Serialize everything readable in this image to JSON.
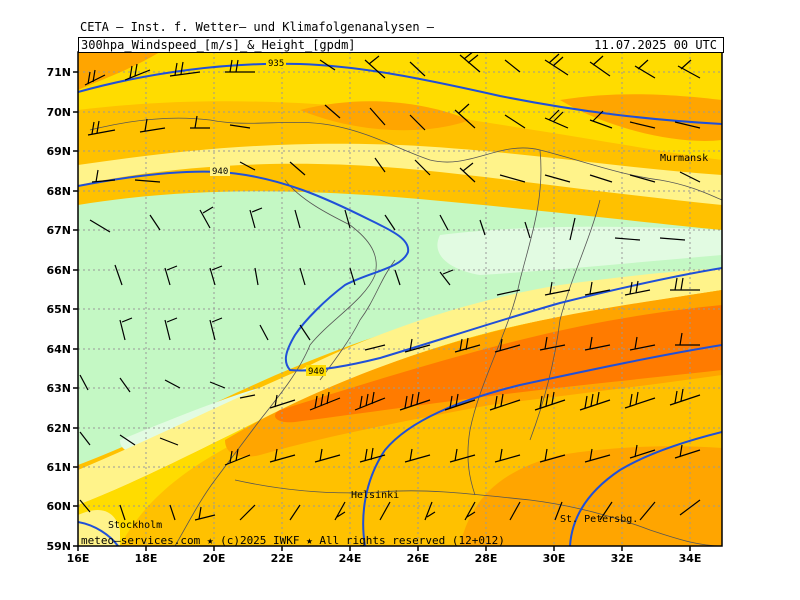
{
  "header": {
    "title": "CETA – Inst. f. Wetter– und Klimafolgenanalysen –",
    "product": "300hpa_Windspeed_[m/s]_&_Height_[gpdm]",
    "valid_time": "11.07.2025 00 UTC"
  },
  "map": {
    "lon_ticks": [
      "16E",
      "18E",
      "20E",
      "22E",
      "24E",
      "26E",
      "28E",
      "30E",
      "32E",
      "34E"
    ],
    "lat_ticks": [
      "59N",
      "60N",
      "61N",
      "62N",
      "63N",
      "64N",
      "65N",
      "66N",
      "67N",
      "68N",
      "69N",
      "70N",
      "71N"
    ],
    "contour_labels": [
      "935",
      "940",
      "940"
    ],
    "places": [
      "Murmansk",
      "Helsinki",
      "St. Petersbg.",
      "Stockholm"
    ],
    "colors": {
      "pale_green": "#d9fadc",
      "light_green": "#c4f8c4",
      "pale_yellow": "#fff38a",
      "yellow": "#ffdc00",
      "light_orange": "#ffc100",
      "orange": "#ffa500",
      "dark_orange": "#ff7b00",
      "contour": "#2050d8"
    }
  },
  "footer": {
    "credit": "meteo–services.com ★ (c)2025 IWKF ★ All rights reserved (12+012)"
  }
}
